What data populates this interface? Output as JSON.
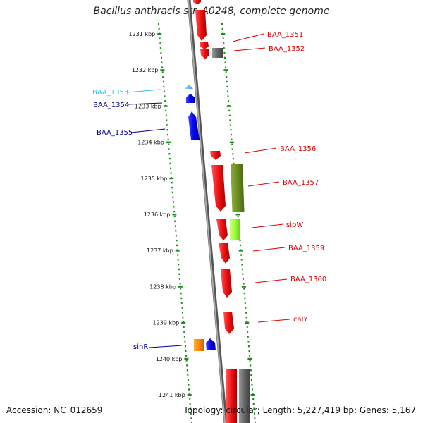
{
  "title": "Bacillus anthracis str. A0248, complete genome",
  "footer": {
    "accession": "Accession: NC_012659",
    "topology": "Topology: circular; Length: 5,227,419 bp; Genes: 5,167"
  },
  "ticks": [
    "1231 kbp",
    "1232 kbp",
    "1233 kbp",
    "1234 kbp",
    "1235 kbp",
    "1236 kbp",
    "1237 kbp",
    "1238 kbp",
    "1239 kbp",
    "1240 kbp",
    "1241 kbp"
  ],
  "genes": [
    {
      "label": "BAA_1351",
      "color": "#dd0000"
    },
    {
      "label": "BAA_1352",
      "color": "#dd0000"
    },
    {
      "label": "BAA_1353",
      "color": "#33bbee"
    },
    {
      "label": "BAA_1354",
      "color": "#000099"
    },
    {
      "label": "BAA_1355",
      "color": "#000099"
    },
    {
      "label": "BAA_1356",
      "color": "#dd0000"
    },
    {
      "label": "BAA_1357",
      "color": "#dd0000"
    },
    {
      "label": "sipW",
      "color": "#dd0000"
    },
    {
      "label": "BAA_1359",
      "color": "#dd0000"
    },
    {
      "label": "BAA_1360",
      "color": "#dd0000"
    },
    {
      "label": "calY",
      "color": "#dd0000"
    },
    {
      "label": "sinR",
      "color": "#000099"
    }
  ],
  "colors": {
    "forward": "#ee1111",
    "reverse": "#0000ee",
    "reverse_small": "#44bbff",
    "grey": "#666666",
    "olive": "#6b8e23",
    "lime": "#99ff33",
    "orange": "#ff8800",
    "dots": "#1a8a1a",
    "backbone": "#888888"
  }
}
